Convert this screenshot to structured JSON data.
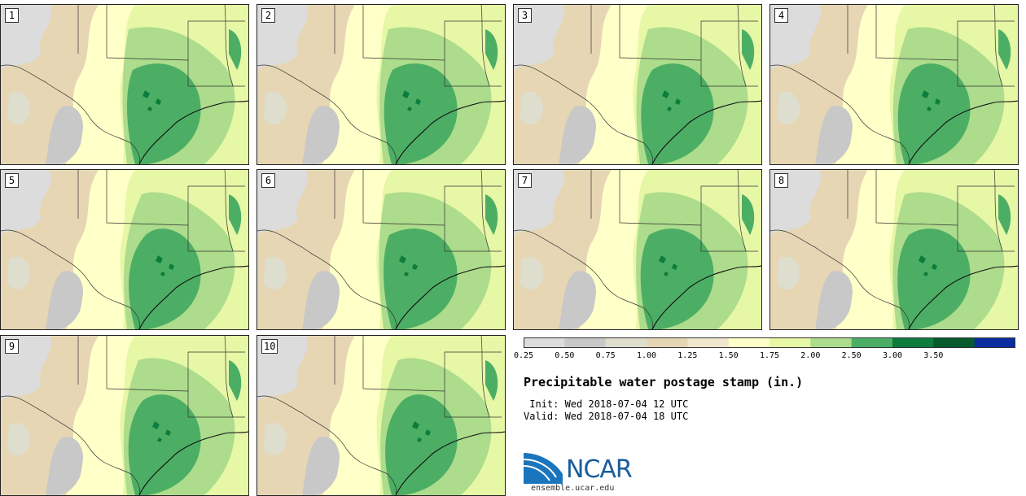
{
  "panels": [
    "1",
    "2",
    "3",
    "4",
    "5",
    "6",
    "7",
    "8",
    "9",
    "10"
  ],
  "colorbar": {
    "colors": [
      "#dcdcdc",
      "#c8c8c8",
      "#dedece",
      "#e6d6b4",
      "#f0e6cc",
      "#ffffc8",
      "#e6f7a6",
      "#acdc8c",
      "#4cae64",
      "#0c7d3c",
      "#075a2c",
      "#0c2ea0"
    ],
    "ticks": [
      "0.25",
      "0.50",
      "0.75",
      "1.00",
      "1.25",
      "1.50",
      "1.75",
      "2.00",
      "2.50",
      "3.00",
      "3.50"
    ]
  },
  "title": "Precipitable water postage stamp (in.)",
  "init_label": " Init: Wed 2018-07-04 12 UTC",
  "valid_label": "Valid: Wed 2018-07-04 18 UTC",
  "logo": {
    "name": "NCAR",
    "url": "ensemble.ucar.edu"
  }
}
